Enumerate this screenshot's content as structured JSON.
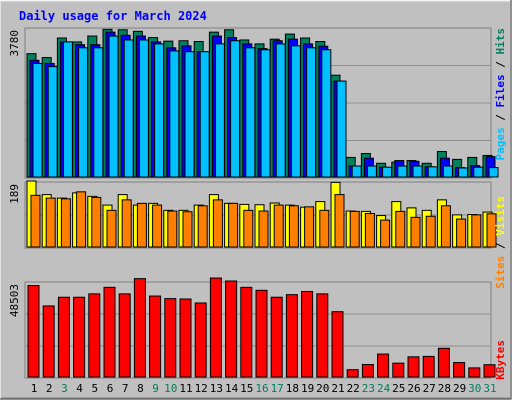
{
  "title": "Daily usage for March 2024",
  "colors": {
    "background": "#C0C0C0",
    "title": "#0000FF",
    "hits": "#00805C",
    "files": "#0000FF",
    "pages": "#00C0FF",
    "visits": "#FFFF00",
    "sites": "#FF8000",
    "kbytes": "#FF0000",
    "weekend_label": "#00805C",
    "weekday_label": "#000000"
  },
  "chart_data": [
    {
      "type": "bar",
      "panel": "top",
      "ymax_label": "3780",
      "ylim": [
        0,
        3780
      ],
      "x": [
        "1",
        "2",
        "3",
        "4",
        "5",
        "6",
        "7",
        "8",
        "9",
        "10",
        "11",
        "12",
        "13",
        "14",
        "15",
        "16",
        "17",
        "18",
        "19",
        "20",
        "21",
        "22",
        "23",
        "24",
        "25",
        "26",
        "27",
        "28",
        "29",
        "30",
        "31"
      ],
      "legend": [
        "Pages",
        "Files",
        "Hits"
      ],
      "series": [
        {
          "name": "Hits",
          "values": [
            3150,
            3050,
            3550,
            3450,
            3600,
            3770,
            3760,
            3720,
            3560,
            3470,
            3480,
            3460,
            3700,
            3760,
            3500,
            3400,
            3520,
            3650,
            3550,
            3460,
            2600,
            500,
            600,
            350,
            380,
            420,
            350,
            650,
            450,
            500,
            550
          ]
        },
        {
          "name": "Files",
          "values": [
            2980,
            2900,
            3450,
            3380,
            3380,
            3700,
            3620,
            3600,
            3450,
            3300,
            3350,
            3200,
            3600,
            3560,
            3400,
            3280,
            3480,
            3520,
            3400,
            3340,
            2450,
            280,
            480,
            250,
            420,
            400,
            260,
            480,
            240,
            290,
            520
          ]
        },
        {
          "name": "Pages",
          "values": [
            2900,
            2820,
            3450,
            3300,
            3300,
            3600,
            3500,
            3500,
            3400,
            3220,
            3200,
            3200,
            3400,
            3480,
            3300,
            3250,
            3400,
            3350,
            3300,
            3250,
            2450,
            280,
            280,
            250,
            280,
            280,
            260,
            280,
            230,
            250,
            240
          ]
        }
      ]
    },
    {
      "type": "bar",
      "panel": "middle",
      "ymax_label": "189",
      "ylim": [
        0,
        189
      ],
      "x": [
        "1",
        "2",
        "3",
        "4",
        "5",
        "6",
        "7",
        "8",
        "9",
        "10",
        "11",
        "12",
        "13",
        "14",
        "15",
        "16",
        "17",
        "18",
        "19",
        "20",
        "21",
        "22",
        "23",
        "24",
        "25",
        "26",
        "27",
        "28",
        "29",
        "30",
        "31"
      ],
      "legend": [
        "Sites",
        "Visits"
      ],
      "series": [
        {
          "name": "Visits",
          "values": [
            189,
            150,
            140,
            155,
            145,
            120,
            150,
            120,
            125,
            105,
            105,
            120,
            150,
            125,
            122,
            121,
            126,
            120,
            114,
            130,
            185,
            103,
            102,
            90,
            130,
            112,
            105,
            135,
            92,
            93,
            100
          ]
        },
        {
          "name": "Sites",
          "values": [
            148,
            140,
            138,
            158,
            142,
            105,
            135,
            125,
            120,
            103,
            101,
            118,
            135,
            125,
            105,
            103,
            120,
            118,
            115,
            105,
            150,
            102,
            96,
            77,
            102,
            85,
            88,
            118,
            80,
            92,
            95
          ]
        }
      ]
    },
    {
      "type": "bar",
      "panel": "bottom",
      "ymax_label": "48503",
      "ylim": [
        0,
        48503
      ],
      "x": [
        "1",
        "2",
        "3",
        "4",
        "5",
        "6",
        "7",
        "8",
        "9",
        "10",
        "11",
        "12",
        "13",
        "14",
        "15",
        "16",
        "17",
        "18",
        "19",
        "20",
        "21",
        "22",
        "23",
        "24",
        "25",
        "26",
        "27",
        "28",
        "29",
        "30",
        "31"
      ],
      "legend": [
        "KBytes"
      ],
      "series": [
        {
          "name": "KBytes",
          "values": [
            46200,
            35900,
            40300,
            40300,
            42000,
            45300,
            42000,
            49700,
            40900,
            39600,
            39400,
            37400,
            50000,
            48500,
            45300,
            43800,
            40300,
            41600,
            43200,
            42000,
            33000,
            3700,
            6300,
            11600,
            7000,
            10200,
            10400,
            14500,
            7300,
            4600,
            6200
          ]
        }
      ]
    }
  ],
  "weekend_days": [
    "3",
    "9",
    "10",
    "16",
    "17",
    "23",
    "24",
    "30",
    "31"
  ]
}
